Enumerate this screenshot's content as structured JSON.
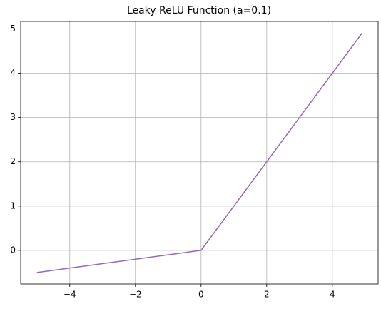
{
  "chart_data": {
    "type": "line",
    "title": "Leaky ReLU Function (a=0.1)",
    "x": [
      -5,
      0,
      4.9
    ],
    "series": [
      {
        "color": "#9467bd",
        "values": [
          -0.5,
          0,
          4.9
        ]
      }
    ],
    "xlim": [
      -5.495,
      5.395
    ],
    "xticks": [
      {
        "value": -4,
        "label": "−4"
      },
      {
        "value": -2,
        "label": "−2"
      },
      0,
      2,
      4
    ],
    "ylim": [
      -0.7595,
      5.1695
    ],
    "yticks": [
      0,
      1,
      2,
      3,
      4,
      5
    ],
    "grid": true
  }
}
